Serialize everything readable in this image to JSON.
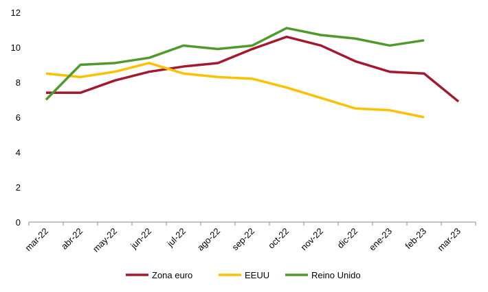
{
  "chart_data": {
    "type": "line",
    "title": "",
    "xlabel": "",
    "ylabel": "",
    "ylim": [
      0,
      12
    ],
    "yticks": [
      "0",
      "2",
      "4",
      "6",
      "8",
      "10",
      "12"
    ],
    "grid": false,
    "legend_position": "bottom",
    "categories": [
      "mar-22",
      "abr-22",
      "may-22",
      "jun-22",
      "jul-22",
      "ago-22",
      "sep-22",
      "oct-22",
      "nov-22",
      "dic-22",
      "ene-23",
      "feb-23",
      "mar-23"
    ],
    "series": [
      {
        "name": "Zona euro",
        "color": "#A5192E",
        "values": [
          7.4,
          7.4,
          8.1,
          8.6,
          8.9,
          9.1,
          9.9,
          10.6,
          10.1,
          9.2,
          8.6,
          8.5,
          6.9
        ]
      },
      {
        "name": "EEUU",
        "color": "#FFC000",
        "values": [
          8.5,
          8.3,
          8.6,
          9.1,
          8.5,
          8.3,
          8.2,
          7.7,
          7.1,
          6.5,
          6.4,
          6.0,
          null
        ]
      },
      {
        "name": "Reino Unido",
        "color": "#4E9A2A",
        "values": [
          7.0,
          9.0,
          9.1,
          9.4,
          10.1,
          9.9,
          10.1,
          11.1,
          10.7,
          10.5,
          10.1,
          10.4,
          null
        ]
      }
    ]
  }
}
